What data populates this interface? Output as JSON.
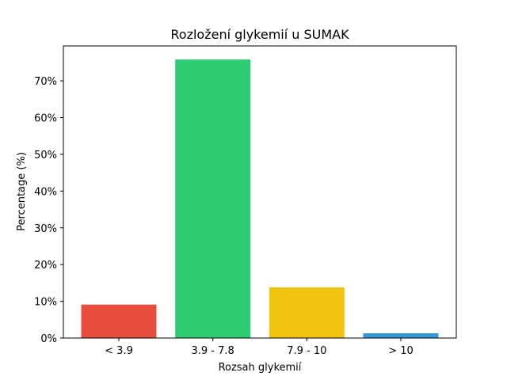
{
  "chart_data": {
    "type": "bar",
    "title": "Rozložení glykemií u  SUMAK",
    "xlabel": "Rozsah glykemií",
    "ylabel": "Percentage (%)",
    "categories": [
      "< 3.9",
      "3.9 - 7.8",
      "7.9 - 10",
      "> 10"
    ],
    "values": [
      9.1,
      75.8,
      13.8,
      1.3
    ],
    "colors": [
      "#e74c3c",
      "#2ecc71",
      "#f1c40f",
      "#3498db"
    ],
    "ylim": [
      0,
      79.5
    ],
    "yticks": [
      0,
      10,
      20,
      30,
      40,
      50,
      60,
      70
    ],
    "ytick_labels": [
      "0%",
      "10%",
      "20%",
      "30%",
      "40%",
      "50%",
      "60%",
      "70%"
    ],
    "grid": false,
    "legend": "none"
  }
}
